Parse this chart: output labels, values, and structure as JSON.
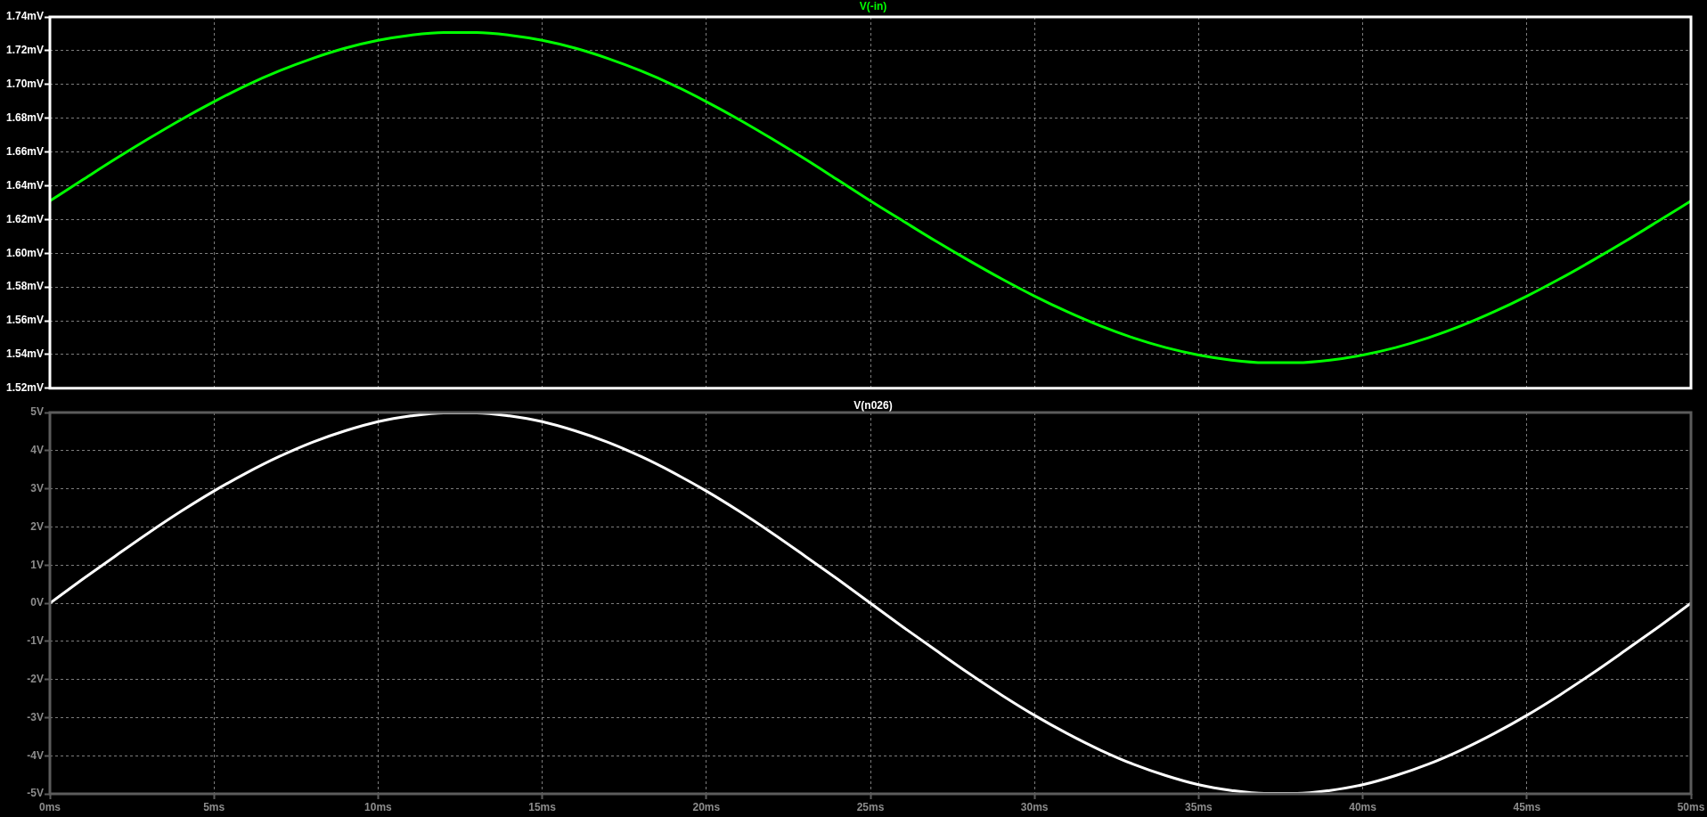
{
  "chart_data": [
    {
      "type": "line",
      "x": [
        0,
        1,
        2,
        3,
        4,
        5,
        6,
        7,
        8,
        9,
        10,
        11,
        12,
        13,
        14,
        15,
        16,
        17,
        18,
        19,
        20,
        21,
        22,
        23,
        24,
        25,
        26,
        27,
        28,
        29,
        30,
        31,
        32,
        33,
        34,
        35,
        36,
        37,
        38,
        39,
        40,
        41,
        42,
        43,
        44,
        45,
        46,
        47,
        48,
        49,
        50
      ],
      "series": [
        {
          "name": "V(-in)",
          "color": "#00ff00",
          "values": [
            1.631,
            1.6435,
            1.6559,
            1.6678,
            1.6792,
            1.6898,
            1.6996,
            1.7081,
            1.7154,
            1.7215,
            1.7261,
            1.7292,
            1.7308,
            1.7308,
            1.7292,
            1.7261,
            1.7215,
            1.7154,
            1.7081,
            1.6996,
            1.6898,
            1.6792,
            1.6678,
            1.6559,
            1.6435,
            1.631,
            1.619,
            1.6071,
            1.5957,
            1.5848,
            1.5746,
            1.5653,
            1.557,
            1.5499,
            1.5441,
            1.5397,
            1.5367,
            1.5352,
            1.5352,
            1.5367,
            1.5397,
            1.5441,
            1.5499,
            1.557,
            1.5653,
            1.5746,
            1.5848,
            1.5957,
            1.6071,
            1.619,
            1.631
          ]
        }
      ],
      "xlim": [
        0,
        50
      ],
      "xticks": [
        0,
        5,
        10,
        15,
        20,
        25,
        30,
        35,
        40,
        45,
        50
      ],
      "ylim": [
        1.52,
        1.74
      ],
      "yticks": [
        {
          "value": 1.52,
          "label": "1.52mV"
        },
        {
          "value": 1.54,
          "label": "1.54mV"
        },
        {
          "value": 1.56,
          "label": "1.56mV"
        },
        {
          "value": 1.58,
          "label": "1.58mV"
        },
        {
          "value": 1.6,
          "label": "1.60mV"
        },
        {
          "value": 1.62,
          "label": "1.62mV"
        },
        {
          "value": 1.64,
          "label": "1.64mV"
        },
        {
          "value": 1.66,
          "label": "1.66mV"
        },
        {
          "value": 1.68,
          "label": "1.68mV"
        },
        {
          "value": 1.7,
          "label": "1.70mV"
        },
        {
          "value": 1.72,
          "label": "1.72mV"
        },
        {
          "value": 1.74,
          "label": "1.74mV"
        }
      ],
      "grid": true,
      "legend": "top",
      "tick_labels": "y"
    },
    {
      "type": "line",
      "x": [
        0,
        1,
        2,
        3,
        4,
        5,
        6,
        7,
        8,
        9,
        10,
        11,
        12,
        13,
        14,
        15,
        16,
        17,
        18,
        19,
        20,
        21,
        22,
        23,
        24,
        25,
        26,
        27,
        28,
        29,
        30,
        31,
        32,
        33,
        34,
        35,
        36,
        37,
        38,
        39,
        40,
        41,
        42,
        43,
        44,
        45,
        46,
        47,
        48,
        49,
        50
      ],
      "series": [
        {
          "name": "V(n026)",
          "color": "#ffffff",
          "values": [
            0,
            0.63,
            1.24,
            1.84,
            2.41,
            2.94,
            3.42,
            3.85,
            4.22,
            4.52,
            4.76,
            4.91,
            4.99,
            4.99,
            4.91,
            4.76,
            4.52,
            4.22,
            3.85,
            3.42,
            2.94,
            2.41,
            1.84,
            1.24,
            0.63,
            0,
            -0.63,
            -1.24,
            -1.84,
            -2.41,
            -2.94,
            -3.42,
            -3.85,
            -4.22,
            -4.52,
            -4.76,
            -4.91,
            -4.99,
            -4.99,
            -4.91,
            -4.76,
            -4.52,
            -4.22,
            -3.85,
            -3.42,
            -2.94,
            -2.41,
            -1.84,
            -1.24,
            -0.63,
            0
          ]
        }
      ],
      "xlim": [
        0,
        50
      ],
      "xticks": [
        {
          "value": 0,
          "label": "0ms"
        },
        {
          "value": 5,
          "label": "5ms"
        },
        {
          "value": 10,
          "label": "10ms"
        },
        {
          "value": 15,
          "label": "15ms"
        },
        {
          "value": 20,
          "label": "20ms"
        },
        {
          "value": 25,
          "label": "25ms"
        },
        {
          "value": 30,
          "label": "30ms"
        },
        {
          "value": 35,
          "label": "35ms"
        },
        {
          "value": 40,
          "label": "40ms"
        },
        {
          "value": 45,
          "label": "45ms"
        },
        {
          "value": 50,
          "label": "50ms"
        }
      ],
      "ylim": [
        -5,
        5
      ],
      "yticks": [
        {
          "value": -5,
          "label": "-5V"
        },
        {
          "value": -4,
          "label": "-4V"
        },
        {
          "value": -3,
          "label": "-3V"
        },
        {
          "value": -2,
          "label": "-2V"
        },
        {
          "value": -1,
          "label": "-1V"
        },
        {
          "value": 0,
          "label": "0V"
        },
        {
          "value": 1,
          "label": "1V"
        },
        {
          "value": 2,
          "label": "2V"
        },
        {
          "value": 3,
          "label": "3V"
        },
        {
          "value": 4,
          "label": "4V"
        },
        {
          "value": 5,
          "label": "5V"
        }
      ],
      "grid": true,
      "legend": "top"
    }
  ]
}
